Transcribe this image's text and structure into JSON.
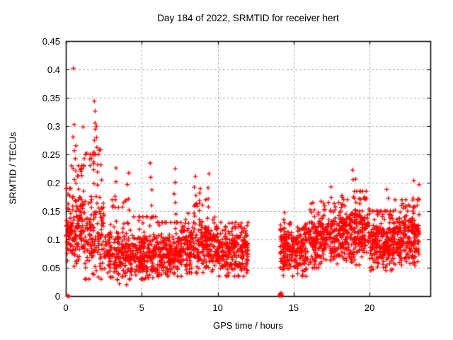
{
  "chart_data": {
    "type": "scatter",
    "title": "Day 184 of 2022, SRMTID for receiver hert",
    "xlabel": "GPS time / hours",
    "ylabel": "SRMTID / TECUs",
    "xlim": [
      0,
      24
    ],
    "ylim": [
      0,
      0.45
    ],
    "xticks": [
      {
        "v": 0,
        "label": "0"
      },
      {
        "v": 5,
        "label": "5"
      },
      {
        "v": 10,
        "label": "10"
      },
      {
        "v": 15,
        "label": "15"
      },
      {
        "v": 20,
        "label": "20"
      }
    ],
    "yticks": [
      {
        "v": 0.0,
        "label": "0"
      },
      {
        "v": 0.05,
        "label": "0.05"
      },
      {
        "v": 0.1,
        "label": "0.1"
      },
      {
        "v": 0.15,
        "label": "0.15"
      },
      {
        "v": 0.2,
        "label": "0.2"
      },
      {
        "v": 0.25,
        "label": "0.25"
      },
      {
        "v": 0.3,
        "label": "0.3"
      },
      {
        "v": 0.35,
        "label": "0.35"
      },
      {
        "v": 0.4,
        "label": "0.4"
      },
      {
        "v": 0.45,
        "label": "0.45"
      }
    ],
    "grid": true,
    "legend": "none",
    "style": {
      "marker_shape": "plus",
      "marker_color": "#ff0000",
      "grid_color": "#a8a8a8",
      "border_color": "#000000",
      "background": "#ffffff"
    },
    "data_gap_hours": [
      12.0,
      14.1
    ],
    "seed": 184,
    "outlier_points": [
      [
        0.5,
        0.402
      ]
    ],
    "zero_axis_points": [
      0.13,
      0.2
    ],
    "zero_cluster": {
      "x0": 14.06,
      "x1": 14.22,
      "n": 9
    },
    "clusters": [
      {
        "x0": 0.02,
        "x1": 0.35,
        "n": 50,
        "center": 0.105,
        "sigma": 0.038,
        "ymin": 0.03,
        "ymax": 0.19,
        "tailFrac": 0.1,
        "tailMax": 0.3
      },
      {
        "x0": 0.35,
        "x1": 1.2,
        "n": 120,
        "center": 0.115,
        "sigma": 0.042,
        "ymin": 0.04,
        "ymax": 0.23,
        "tailFrac": 0.09,
        "tailMax": 0.3
      },
      {
        "x0": 1.2,
        "x1": 2.6,
        "n": 150,
        "center": 0.1,
        "sigma": 0.045,
        "ymin": 0.03,
        "ymax": 0.25,
        "tailFrac": 0.1,
        "tailMax": 0.33
      },
      {
        "x0": 2.6,
        "x1": 4.0,
        "n": 170,
        "center": 0.075,
        "sigma": 0.03,
        "ymin": 0.02,
        "ymax": 0.17,
        "tailFrac": 0.05,
        "tailMax": 0.22
      },
      {
        "x0": 4.0,
        "x1": 6.0,
        "n": 240,
        "center": 0.07,
        "sigma": 0.026,
        "ymin": 0.03,
        "ymax": 0.14,
        "tailFrac": 0.04,
        "tailMax": 0.2
      },
      {
        "x0": 6.0,
        "x1": 7.6,
        "n": 200,
        "center": 0.072,
        "sigma": 0.024,
        "ymin": 0.035,
        "ymax": 0.13,
        "tailFrac": 0.04,
        "tailMax": 0.19
      },
      {
        "x0": 7.6,
        "x1": 10.0,
        "n": 290,
        "center": 0.09,
        "sigma": 0.03,
        "ymin": 0.04,
        "ymax": 0.17,
        "tailFrac": 0.05,
        "tailMax": 0.2
      },
      {
        "x0": 10.0,
        "x1": 12.0,
        "n": 250,
        "center": 0.08,
        "sigma": 0.026,
        "ymin": 0.035,
        "ymax": 0.13,
        "tailFrac": 0.03,
        "tailMax": 0.15
      },
      {
        "x0": 14.1,
        "x1": 16.0,
        "n": 230,
        "center": 0.082,
        "sigma": 0.026,
        "ymin": 0.035,
        "ymax": 0.135,
        "tailFrac": 0.03,
        "tailMax": 0.15
      },
      {
        "x0": 16.0,
        "x1": 18.0,
        "n": 250,
        "center": 0.1,
        "sigma": 0.03,
        "ymin": 0.05,
        "ymax": 0.165,
        "tailFrac": 0.04,
        "tailMax": 0.19
      },
      {
        "x0": 18.0,
        "x1": 20.0,
        "n": 270,
        "center": 0.115,
        "sigma": 0.032,
        "ymin": 0.055,
        "ymax": 0.185,
        "tailFrac": 0.04,
        "tailMax": 0.21
      },
      {
        "x0": 20.0,
        "x1": 21.5,
        "n": 210,
        "center": 0.09,
        "sigma": 0.028,
        "ymin": 0.045,
        "ymax": 0.15,
        "tailFrac": 0.04,
        "tailMax": 0.18
      },
      {
        "x0": 21.5,
        "x1": 23.25,
        "n": 250,
        "center": 0.1,
        "sigma": 0.03,
        "ymin": 0.03,
        "ymax": 0.17,
        "tailFrac": 0.05,
        "tailMax": 0.2
      }
    ],
    "spikes": [
      {
        "x": 0.5,
        "y0": 0.18,
        "y1": 0.3,
        "n": 6
      },
      {
        "x": 0.65,
        "y0": 0.17,
        "y1": 0.27,
        "n": 5
      },
      {
        "x": 1.9,
        "y0": 0.2,
        "y1": 0.345,
        "n": 9
      },
      {
        "x": 2.05,
        "y0": 0.17,
        "y1": 0.3,
        "n": 7
      },
      {
        "x": 2.3,
        "y0": 0.15,
        "y1": 0.26,
        "n": 5
      },
      {
        "x": 3.3,
        "y0": 0.13,
        "y1": 0.23,
        "n": 5
      },
      {
        "x": 4.1,
        "y0": 0.13,
        "y1": 0.215,
        "n": 5
      },
      {
        "x": 5.6,
        "y0": 0.12,
        "y1": 0.23,
        "n": 6
      },
      {
        "x": 7.2,
        "y0": 0.12,
        "y1": 0.22,
        "n": 6
      },
      {
        "x": 8.5,
        "y0": 0.13,
        "y1": 0.21,
        "n": 6
      },
      {
        "x": 8.85,
        "y0": 0.13,
        "y1": 0.195,
        "n": 5
      },
      {
        "x": 9.4,
        "y0": 0.12,
        "y1": 0.21,
        "n": 6
      },
      {
        "x": 14.35,
        "y0": 0.1,
        "y1": 0.145,
        "n": 4
      },
      {
        "x": 17.5,
        "y0": 0.13,
        "y1": 0.19,
        "n": 4
      },
      {
        "x": 18.95,
        "y0": 0.15,
        "y1": 0.218,
        "n": 5
      },
      {
        "x": 19.1,
        "y0": 0.14,
        "y1": 0.205,
        "n": 4
      },
      {
        "x": 21.2,
        "y0": 0.12,
        "y1": 0.19,
        "n": 4
      },
      {
        "x": 22.9,
        "y0": 0.12,
        "y1": 0.2,
        "n": 4
      },
      {
        "x": 23.2,
        "y0": 0.12,
        "y1": 0.195,
        "n": 4
      }
    ]
  }
}
